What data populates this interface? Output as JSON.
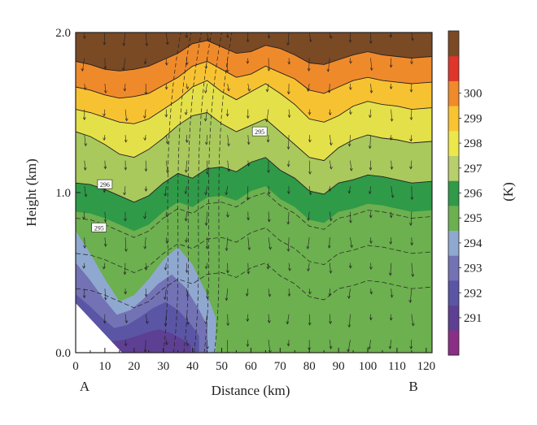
{
  "chart_data": {
    "type": "heatmap",
    "xlabel": "Distance (km)",
    "ylabel": "Height (km)",
    "xlim": [
      0,
      122
    ],
    "ylim": [
      0.0,
      2.0
    ],
    "x_ticks": [
      "0",
      "10",
      "20",
      "30",
      "40",
      "50",
      "60",
      "70",
      "80",
      "90",
      "100",
      "110",
      "120"
    ],
    "y_ticks": [
      "0.0",
      "1.0",
      "2.0"
    ],
    "endpoint_labels": {
      "start": "A",
      "end": "B"
    },
    "colorbar": {
      "unit": "(K)",
      "levels": [
        291,
        292,
        293,
        294,
        295,
        296,
        297,
        298,
        299,
        300
      ],
      "tick_labels": [
        "291",
        "292",
        "293",
        "294",
        "295",
        "296",
        "297",
        "298",
        "299",
        "300"
      ],
      "colors": [
        "#8a2f86",
        "#5d3f93",
        "#5a55a4",
        "#7272b4",
        "#8fa8cf",
        "#6cb04f",
        "#2f9a48",
        "#b8cf6d",
        "#ece84b",
        "#f9c431",
        "#f08a2a",
        "#e0352a",
        "#7a4a25"
      ]
    },
    "isentrope_labels": [
      "295",
      "296",
      "295"
    ],
    "layer_tops_km": [
      {
        "x": [
          0,
          5,
          10,
          15,
          20,
          25,
          30,
          35,
          40,
          45,
          50,
          55,
          60,
          65,
          70,
          75,
          80,
          85,
          90,
          95,
          100,
          105,
          110,
          115,
          122
        ],
        "level": "296/297",
        "y": [
          1.06,
          1.05,
          1.02,
          0.98,
          0.94,
          0.98,
          1.06,
          1.12,
          1.09,
          1.15,
          1.16,
          1.13,
          1.19,
          1.22,
          1.14,
          1.09,
          1.01,
          0.99,
          1.06,
          1.08,
          1.11,
          1.1,
          1.08,
          1.06,
          1.07
        ]
      },
      {
        "x": [
          0,
          5,
          10,
          15,
          20,
          25,
          30,
          35,
          40,
          45,
          50,
          55,
          60,
          65,
          70,
          75,
          80,
          85,
          90,
          95,
          100,
          105,
          110,
          115,
          122
        ],
        "level": "297/298",
        "y": [
          1.38,
          1.35,
          1.3,
          1.24,
          1.22,
          1.27,
          1.34,
          1.42,
          1.48,
          1.5,
          1.43,
          1.38,
          1.42,
          1.46,
          1.38,
          1.3,
          1.22,
          1.2,
          1.28,
          1.33,
          1.36,
          1.34,
          1.33,
          1.31,
          1.32
        ]
      },
      {
        "x": [
          0,
          5,
          10,
          15,
          20,
          25,
          30,
          35,
          40,
          45,
          50,
          55,
          60,
          65,
          70,
          75,
          80,
          85,
          90,
          95,
          100,
          105,
          110,
          115,
          122
        ],
        "level": "298/299",
        "y": [
          1.52,
          1.5,
          1.47,
          1.44,
          1.43,
          1.46,
          1.52,
          1.58,
          1.66,
          1.7,
          1.63,
          1.58,
          1.63,
          1.68,
          1.62,
          1.55,
          1.46,
          1.44,
          1.48,
          1.54,
          1.57,
          1.55,
          1.54,
          1.52,
          1.53
        ]
      },
      {
        "x": [
          0,
          5,
          10,
          15,
          20,
          25,
          30,
          35,
          40,
          45,
          50,
          55,
          60,
          65,
          70,
          75,
          80,
          85,
          90,
          95,
          100,
          105,
          110,
          115,
          122
        ],
        "level": "299/300",
        "y": [
          1.66,
          1.64,
          1.61,
          1.59,
          1.6,
          1.62,
          1.67,
          1.72,
          1.79,
          1.82,
          1.77,
          1.72,
          1.74,
          1.79,
          1.75,
          1.71,
          1.64,
          1.62,
          1.66,
          1.7,
          1.72,
          1.7,
          1.69,
          1.68,
          1.69
        ]
      },
      {
        "x": [
          0,
          5,
          10,
          15,
          20,
          25,
          30,
          35,
          40,
          45,
          50,
          55,
          60,
          65,
          70,
          75,
          80,
          85,
          90,
          95,
          100,
          105,
          110,
          115,
          122
        ],
        "level": "300/301",
        "y": [
          1.82,
          1.8,
          1.77,
          1.76,
          1.77,
          1.79,
          1.83,
          1.87,
          1.93,
          1.95,
          1.91,
          1.87,
          1.88,
          1.92,
          1.9,
          1.86,
          1.81,
          1.8,
          1.83,
          1.86,
          1.88,
          1.86,
          1.85,
          1.84,
          1.85
        ]
      }
    ],
    "cold_pool_top_km": {
      "x": [
        0,
        5,
        10,
        15,
        20,
        25,
        30,
        35,
        40,
        45,
        48
      ],
      "y": [
        0.76,
        0.62,
        0.46,
        0.32,
        0.36,
        0.46,
        0.58,
        0.66,
        0.55,
        0.36,
        0.22
      ]
    }
  }
}
